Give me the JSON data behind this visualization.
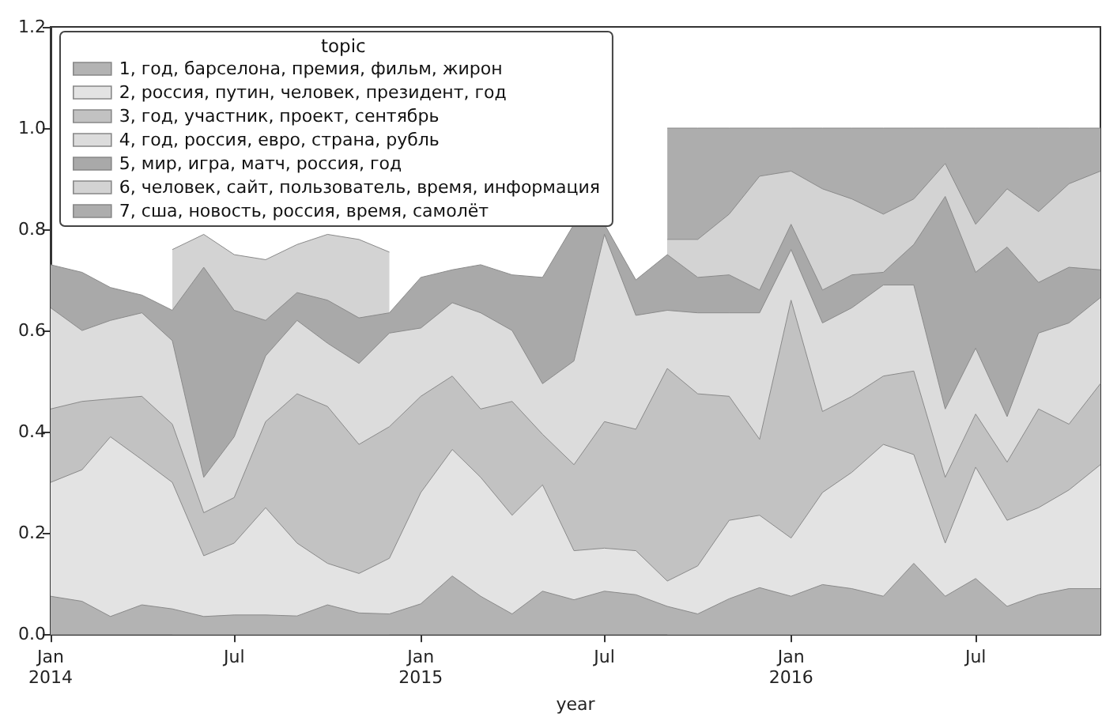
{
  "chart_data": {
    "type": "area",
    "stacked": true,
    "xlabel": "year",
    "legend_title": "topic",
    "legend": "top left",
    "grid": false,
    "marker": "none",
    "line_style": "solid",
    "x": [
      "2014-01",
      "2014-02",
      "2014-03",
      "2014-04",
      "2014-05",
      "2014-06",
      "2014-07",
      "2014-08",
      "2014-09",
      "2014-10",
      "2014-11",
      "2014-12",
      "2015-01",
      "2015-02",
      "2015-03",
      "2015-04",
      "2015-05",
      "2015-06",
      "2015-07",
      "2015-08",
      "2015-09",
      "2015-10",
      "2015-11",
      "2015-12",
      "2016-01",
      "2016-02",
      "2016-03",
      "2016-04",
      "2016-05",
      "2016-06",
      "2016-07",
      "2016-08",
      "2016-09",
      "2016-10",
      "2016-11"
    ],
    "xlim": [
      "2014-01",
      "2016-11"
    ],
    "xticks": [
      {
        "value": "2014-01",
        "label": "Jan\n2014"
      },
      {
        "value": "2014-07",
        "label": "Jul"
      },
      {
        "value": "2015-01",
        "label": "Jan\n2015"
      },
      {
        "value": "2015-07",
        "label": "Jul"
      },
      {
        "value": "2016-01",
        "label": "Jan\n2016"
      },
      {
        "value": "2016-07",
        "label": "Jul"
      }
    ],
    "ylim": [
      0,
      1.2
    ],
    "yticks": [
      {
        "value": 0,
        "label": "0.0"
      },
      {
        "value": 0.2,
        "label": "0.2"
      },
      {
        "value": 0.4,
        "label": "0.4"
      },
      {
        "value": 0.6,
        "label": "0.6"
      },
      {
        "value": 0.8,
        "label": "0.8"
      },
      {
        "value": 1,
        "label": "1.0"
      },
      {
        "value": 1.2,
        "label": "1.2"
      }
    ],
    "series": [
      {
        "name": "1, год, барселона, премия, фильм, жирон",
        "color": "#b3b3b3",
        "values": [
          0.075,
          0.065,
          0.035,
          0.058,
          0.05,
          0.035,
          0.038,
          0.038,
          0.036,
          0.058,
          0.042,
          0.04,
          0.06,
          0.115,
          0.075,
          0.04,
          0.085,
          0.068,
          0.085,
          0.078,
          0.055,
          0.04,
          0.07,
          0.092,
          0.075,
          0.098,
          0.09,
          0.075,
          0.14,
          0.075,
          0.11,
          0.055,
          0.078,
          0.09,
          0.09
        ]
      },
      {
        "name": "2, россия, путин, человек, президент, год",
        "color": "#e3e3e3",
        "values": [
          0.225,
          0.26,
          0.355,
          0.287,
          0.25,
          0.12,
          0.142,
          0.212,
          0.144,
          0.082,
          0.078,
          0.11,
          0.22,
          0.25,
          0.235,
          0.195,
          0.21,
          0.097,
          0.085,
          0.087,
          0.05,
          0.095,
          0.155,
          0.143,
          0.115,
          0.182,
          0.23,
          0.3,
          0.215,
          0.105,
          0.22,
          0.17,
          0.172,
          0.195,
          0.245
        ]
      },
      {
        "name": "3, год, участник, проект, сентябрь",
        "color": "#c2c2c2",
        "values": [
          0.145,
          0.135,
          0.075,
          0.125,
          0.115,
          0.085,
          0.09,
          0.17,
          0.295,
          0.31,
          0.255,
          0.26,
          0.19,
          0.145,
          0.135,
          0.225,
          0.1,
          0.17,
          0.25,
          0.24,
          0.42,
          0.34,
          0.245,
          0.15,
          0.47,
          0.16,
          0.15,
          0.135,
          0.165,
          0.13,
          0.105,
          0.115,
          0.195,
          0.13,
          0.16
        ]
      },
      {
        "name": "4, год, россия, евро, страна, рубль",
        "color": "#dcdcdc",
        "values": [
          0.2,
          0.14,
          0.155,
          0.165,
          0.165,
          0.07,
          0.12,
          0.13,
          0.145,
          0.125,
          0.16,
          0.185,
          0.135,
          0.145,
          0.19,
          0.14,
          0.1,
          0.205,
          0.37,
          0.225,
          0.115,
          0.16,
          0.165,
          0.25,
          0.1,
          0.175,
          0.175,
          0.18,
          0.17,
          0.135,
          0.13,
          0.09,
          0.15,
          0.2,
          0.17
        ]
      },
      {
        "name": "5, мир, игра, матч, россия, год",
        "color": "#a9a9a9",
        "values": [
          0.085,
          0.115,
          0.065,
          0.035,
          0.06,
          0.415,
          0.25,
          0.07,
          0.055,
          0.085,
          0.09,
          0.04,
          0.1,
          0.065,
          0.095,
          0.11,
          0.21,
          0.27,
          0.02,
          0.07,
          0.11,
          0.07,
          0.075,
          0.045,
          0.05,
          0.065,
          0.065,
          0.025,
          0.08,
          0.42,
          0.15,
          0.335,
          0.1,
          0.11,
          0.055
        ]
      },
      {
        "name": "6, человек, сайт, пользователь, время, информация",
        "color": "#d3d3d3",
        "values": [
          null,
          null,
          null,
          null,
          0.12,
          0.065,
          0.11,
          0.12,
          0.095,
          0.13,
          0.155,
          0.12,
          null,
          null,
          null,
          null,
          null,
          null,
          null,
          null,
          0.03,
          0.075,
          0.12,
          0.225,
          0.105,
          0.2,
          0.15,
          0.115,
          0.09,
          0.065,
          0.095,
          0.115,
          0.14,
          0.165,
          0.195
        ]
      },
      {
        "name": "7, сша, новость, россия, время, самолёт",
        "color": "#adadad",
        "values": [
          null,
          null,
          null,
          null,
          null,
          null,
          null,
          null,
          null,
          null,
          null,
          null,
          null,
          null,
          null,
          null,
          null,
          null,
          null,
          null,
          0.22,
          0.22,
          0.17,
          0.095,
          0.085,
          0.12,
          0.14,
          0.17,
          0.14,
          0.07,
          0.19,
          0.12,
          0.165,
          0.11,
          0.085
        ]
      }
    ]
  }
}
